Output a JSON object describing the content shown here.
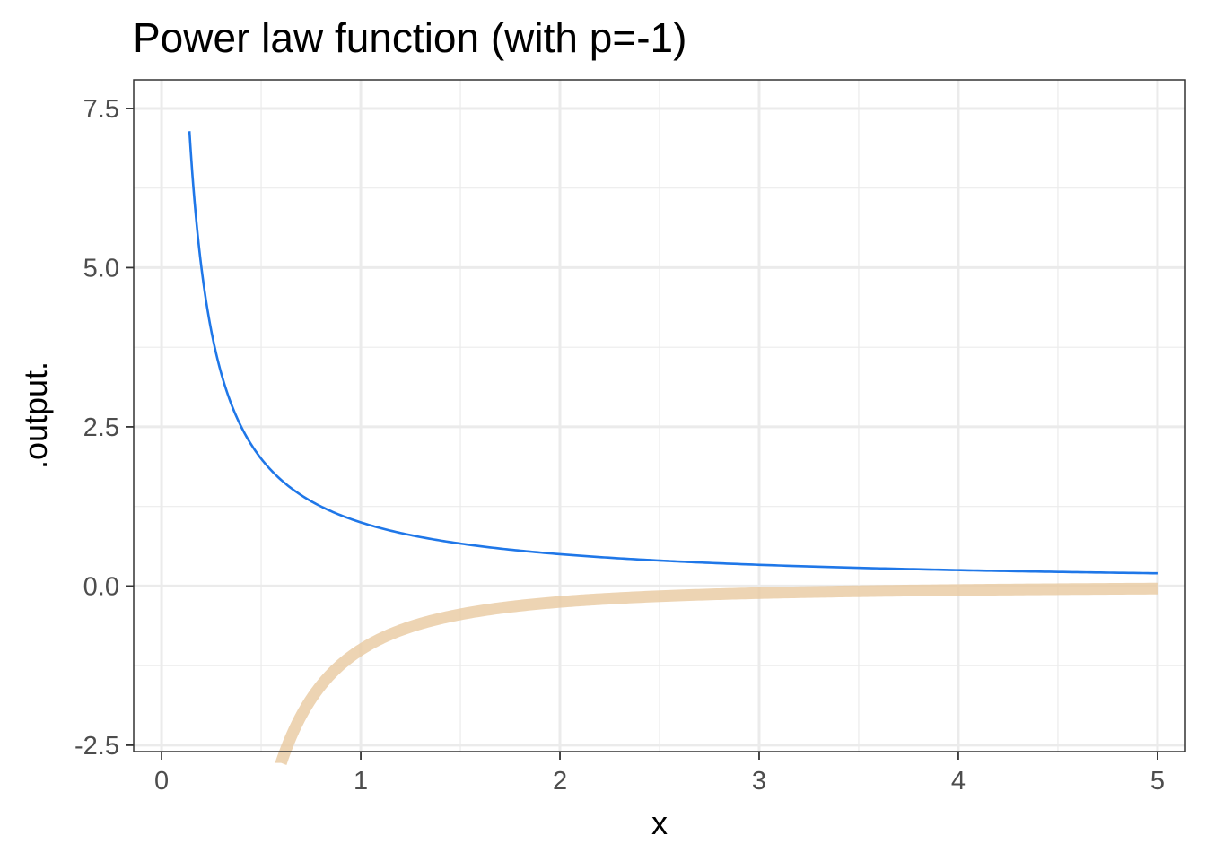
{
  "chart_data": {
    "type": "line",
    "title": "Power law function (with p=-1)",
    "xlabel": "x",
    "ylabel": ".output.",
    "xlim": [
      -0.14,
      5.14
    ],
    "ylim": [
      -2.6,
      7.95
    ],
    "x_ticks": [
      "0",
      "1",
      "2",
      "3",
      "4",
      "5"
    ],
    "y_ticks": [
      "-2.5",
      "0.0",
      "2.5",
      "5.0",
      "7.5"
    ],
    "grid": true,
    "legend": "none",
    "series": [
      {
        "function": "x^-1",
        "x_range": [
          0.14,
          5.0
        ],
        "color": "#1f77e8",
        "style": "thin"
      },
      {
        "function": "-x^-2",
        "x_range": [
          0.6,
          5.0
        ],
        "color": "#e8c9a0",
        "style": "thick-transparent"
      }
    ]
  }
}
